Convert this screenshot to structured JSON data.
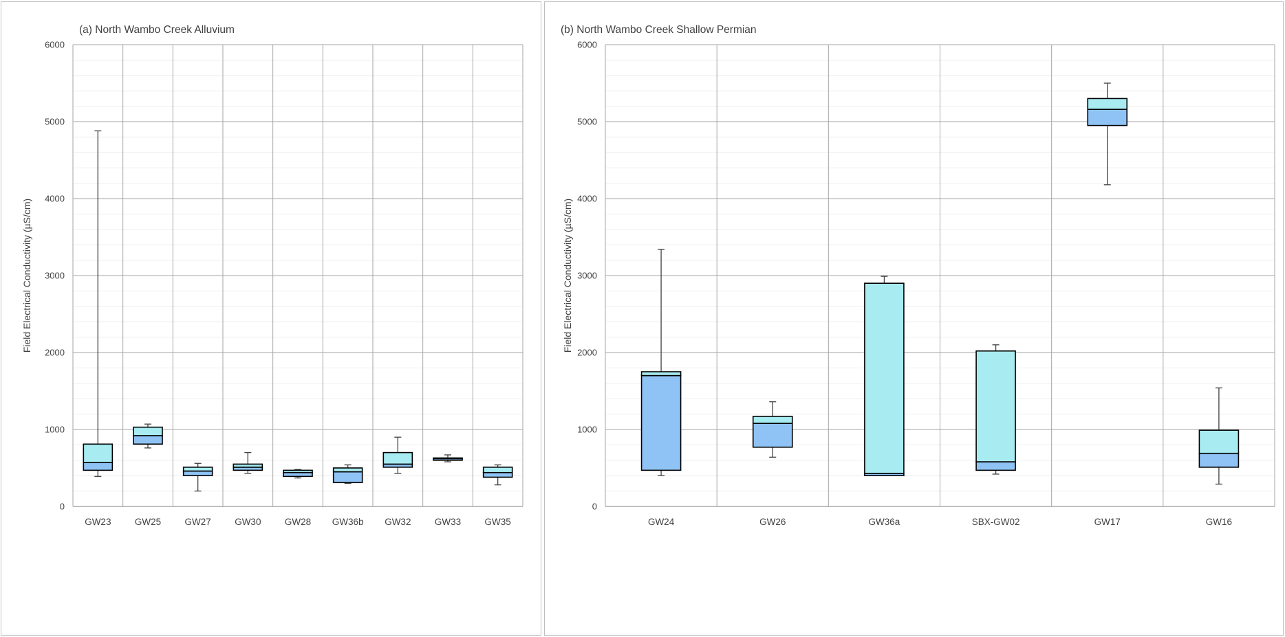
{
  "chart_data": [
    {
      "type": "box",
      "title": "(a) North Wambo Creek Alluvium",
      "xlabel": "",
      "ylabel": "Field Electrical Conductivity (µS/cm)",
      "ylim": [
        0,
        6000
      ],
      "yticks": [
        "0",
        "1000",
        "2000",
        "3000",
        "4000",
        "5000",
        "6000"
      ],
      "grid": true,
      "categories": [
        "GW23",
        "GW25",
        "GW27",
        "GW30",
        "GW28",
        "GW36b",
        "GW32",
        "GW33",
        "GW35"
      ],
      "boxes": [
        {
          "min": 390,
          "q1": 470,
          "median": 570,
          "q3": 810,
          "max": 4880
        },
        {
          "min": 760,
          "q1": 810,
          "median": 920,
          "q3": 1030,
          "max": 1070
        },
        {
          "min": 200,
          "q1": 400,
          "median": 460,
          "q3": 510,
          "max": 560
        },
        {
          "min": 430,
          "q1": 470,
          "median": 510,
          "q3": 550,
          "max": 700
        },
        {
          "min": 370,
          "q1": 390,
          "median": 440,
          "q3": 470,
          "max": 480
        },
        {
          "min": 300,
          "q1": 310,
          "median": 450,
          "q3": 500,
          "max": 540
        },
        {
          "min": 430,
          "q1": 510,
          "median": 550,
          "q3": 700,
          "max": 900
        },
        {
          "min": 580,
          "q1": 600,
          "median": 620,
          "q3": 630,
          "max": 670
        },
        {
          "min": 280,
          "q1": 380,
          "median": 440,
          "q3": 510,
          "max": 540
        }
      ]
    },
    {
      "type": "box",
      "title": "(b) North Wambo Creek Shallow Permian",
      "xlabel": "",
      "ylabel": "Field Electrical Conductivity (µS/cm)",
      "ylim": [
        0,
        6000
      ],
      "yticks": [
        "0",
        "1000",
        "2000",
        "3000",
        "4000",
        "5000",
        "6000"
      ],
      "grid": true,
      "categories": [
        "GW24",
        "GW26",
        "GW36a",
        "SBX-GW02",
        "GW17",
        "GW16"
      ],
      "boxes": [
        {
          "min": 400,
          "q1": 470,
          "median": 1700,
          "q3": 1750,
          "max": 3340
        },
        {
          "min": 640,
          "q1": 770,
          "median": 1080,
          "q3": 1170,
          "max": 1360
        },
        {
          "min": 400,
          "q1": 400,
          "median": 430,
          "q3": 2900,
          "max": 2990
        },
        {
          "min": 420,
          "q1": 470,
          "median": 580,
          "q3": 2020,
          "max": 2100
        },
        {
          "min": 4180,
          "q1": 4950,
          "median": 5160,
          "q3": 5300,
          "max": 5500
        },
        {
          "min": 290,
          "q1": 510,
          "median": 690,
          "q3": 990,
          "max": 1540
        }
      ]
    }
  ],
  "colors": {
    "lower_box": "#8fc3f5",
    "upper_box": "#a8ecf2",
    "grid": "#a6a6a6",
    "border": "#bfbfbf"
  }
}
